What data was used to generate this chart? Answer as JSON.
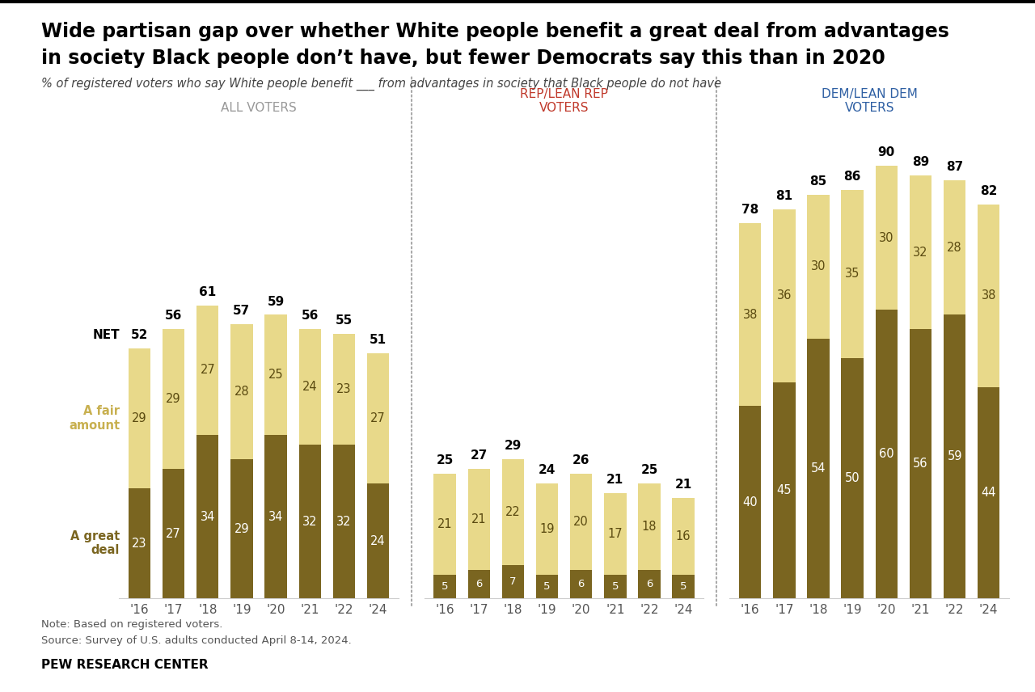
{
  "title_line1": "Wide partisan gap over whether White people benefit a great deal from advantages",
  "title_line2": "in society Black people don’t have, but fewer Democrats say this than in 2020",
  "subtitle": "% of registered voters who say White people benefit ___ from advantages in society that Black people do not have",
  "note": "Note: Based on registered voters.\nSource: Survey of U.S. adults conducted April 8-14, 2024.",
  "source_org": "PEW RESEARCH CENTER",
  "panels": [
    {
      "label": "ALL VOTERS",
      "label_color": "#999999",
      "years": [
        "'16",
        "'17",
        "'18",
        "'19",
        "'20",
        "'21",
        "'22",
        "'24"
      ],
      "great_deal": [
        23,
        27,
        34,
        29,
        34,
        32,
        32,
        24
      ],
      "fair_amount": [
        29,
        29,
        27,
        28,
        25,
        24,
        23,
        27
      ],
      "net": [
        52,
        56,
        61,
        57,
        59,
        56,
        55,
        51
      ]
    },
    {
      "label": "REP/LEAN REP\nVOTERS",
      "label_color": "#c0392b",
      "years": [
        "'16",
        "'17",
        "'18",
        "'19",
        "'20",
        "'21",
        "'22",
        "'24"
      ],
      "great_deal": [
        5,
        6,
        7,
        5,
        6,
        5,
        6,
        5
      ],
      "fair_amount": [
        21,
        21,
        22,
        19,
        20,
        17,
        18,
        16
      ],
      "net": [
        25,
        27,
        29,
        24,
        26,
        21,
        25,
        21
      ]
    },
    {
      "label": "DEM/LEAN DEM\nVOTERS",
      "label_color": "#2e5fa3",
      "years": [
        "'16",
        "'17",
        "'18",
        "'19",
        "'20",
        "'21",
        "'22",
        "'24"
      ],
      "great_deal": [
        40,
        45,
        54,
        50,
        60,
        56,
        59,
        44
      ],
      "fair_amount": [
        38,
        36,
        30,
        35,
        30,
        32,
        28,
        38
      ],
      "net": [
        78,
        81,
        85,
        86,
        90,
        89,
        87,
        82
      ]
    }
  ],
  "color_great_deal": "#7a6520",
  "color_fair_amount": "#e8d98a",
  "ylim_max": 100,
  "bar_width": 0.65,
  "separator_color": "#aaaaaa",
  "legend_great_deal_color": "#7a6520",
  "legend_fair_amount_color": "#c8b050"
}
